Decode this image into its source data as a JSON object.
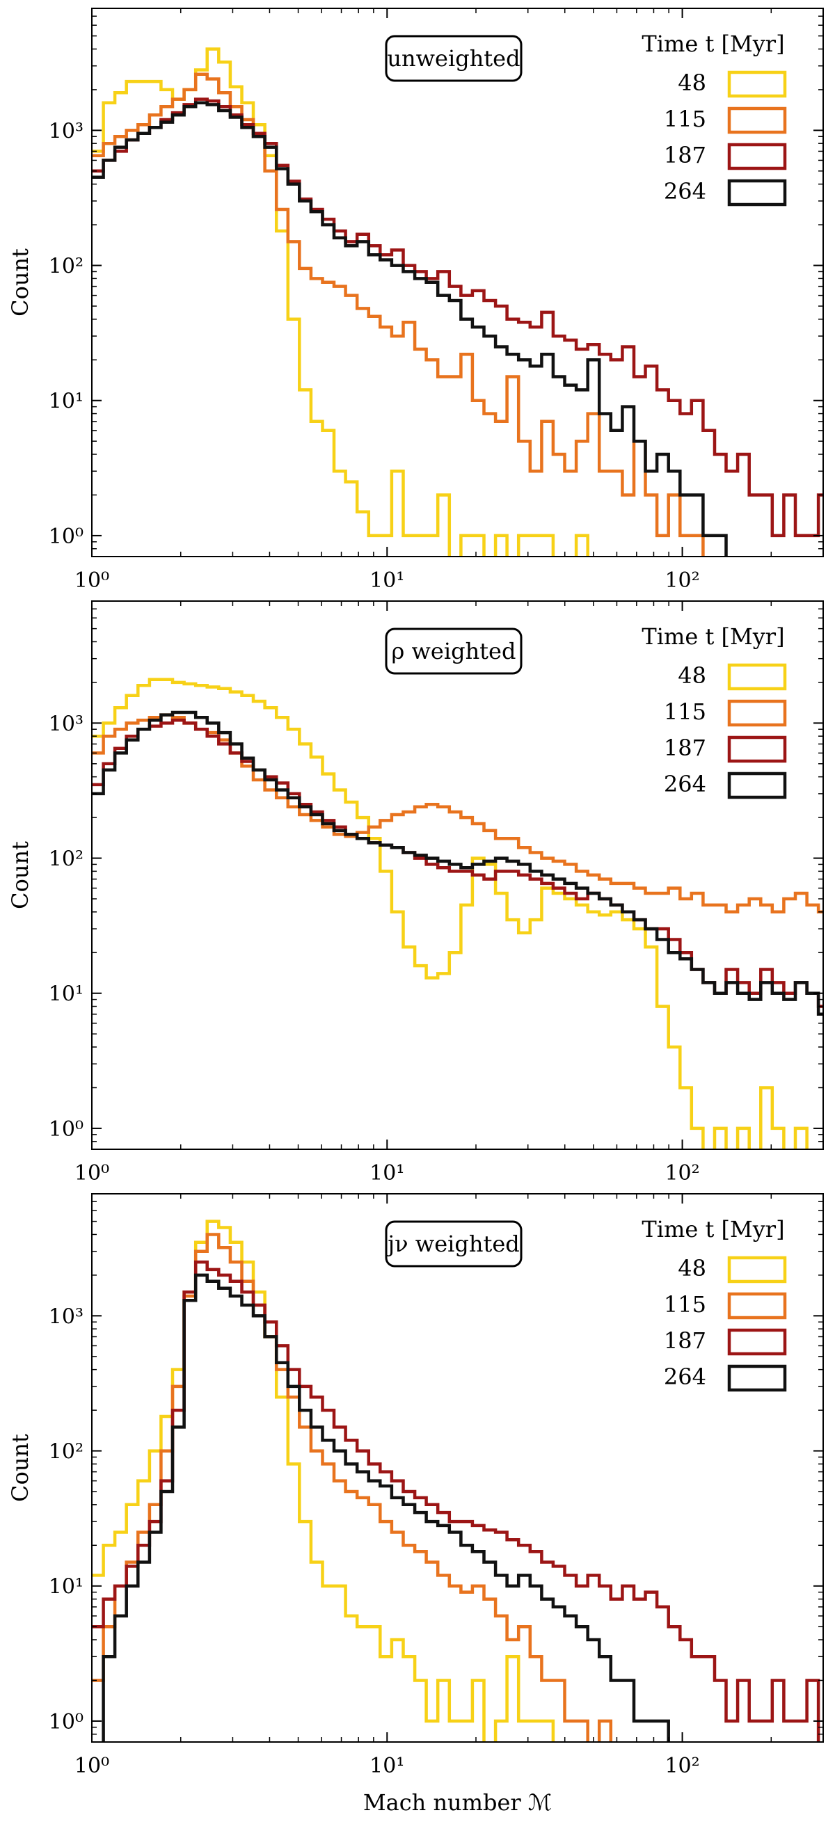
{
  "colors": {
    "48": "#f7d117",
    "115": "#e8731e",
    "187": "#9c1515",
    "264": "#111111",
    "axis": "#000000",
    "background": "#ffffff"
  },
  "chart_data": [
    {
      "type": "histogram",
      "panel_label": "unweighted",
      "ylabel": "Count",
      "xlabel": "",
      "xscale": "log",
      "yscale": "log",
      "xlim": [
        1,
        300
      ],
      "ylim": [
        0.7,
        8000
      ],
      "x_ticks": [
        {
          "value": 1,
          "label": "10⁰"
        },
        {
          "value": 10,
          "label": "10¹"
        },
        {
          "value": 100,
          "label": "10²"
        }
      ],
      "y_ticks": [
        {
          "value": 1,
          "label": "10⁰"
        },
        {
          "value": 10,
          "label": "10¹"
        },
        {
          "value": 100,
          "label": "10²"
        },
        {
          "value": 1000,
          "label": "10³"
        }
      ],
      "legend": {
        "title": "Time t [Myr]",
        "position": "top-right",
        "entries": [
          "48",
          "115",
          "187",
          "264"
        ]
      },
      "bin_edges_log10": [
        0.0,
        2.5
      ],
      "n_bins": 64,
      "series": [
        {
          "name": "48",
          "values": [
            700,
            1600,
            1900,
            2300,
            2300,
            2300,
            2000,
            1700,
            2000,
            2800,
            4000,
            3200,
            2100,
            1600,
            1100,
            650,
            180,
            40,
            12,
            7,
            6,
            3,
            2.5,
            1.5,
            1,
            1,
            3,
            1,
            1,
            1,
            2,
            0.5,
            1,
            1,
            0.5,
            1,
            0.5,
            1,
            1,
            1,
            0.5,
            0.5,
            1,
            0.5,
            0.5,
            0.5,
            0.5,
            0.5,
            0.5,
            0.5,
            0.5,
            0.5,
            0.5,
            0.5,
            0.5,
            0.5,
            0.5,
            0.5,
            0.5,
            0.5,
            0.5,
            0.5,
            0.5,
            0.5
          ]
        },
        {
          "name": "115",
          "values": [
            650,
            800,
            900,
            1000,
            1100,
            1300,
            1500,
            1700,
            2000,
            2600,
            2400,
            1900,
            1500,
            1200,
            900,
            500,
            260,
            150,
            95,
            80,
            75,
            70,
            60,
            48,
            42,
            35,
            30,
            38,
            24,
            20,
            15,
            15,
            22,
            10,
            8,
            7,
            15,
            5,
            3,
            7,
            4,
            3,
            5,
            8,
            3,
            3,
            2,
            5,
            2,
            1,
            2,
            1,
            1,
            0.5,
            0.5,
            0.5,
            0.5,
            0.5,
            0.5,
            0.5,
            0.5,
            0.5,
            0.5,
            0.5
          ]
        },
        {
          "name": "187",
          "values": [
            500,
            600,
            700,
            850,
            950,
            1050,
            1200,
            1350,
            1550,
            1700,
            1650,
            1500,
            1300,
            1100,
            950,
            800,
            550,
            420,
            310,
            260,
            220,
            180,
            150,
            170,
            140,
            120,
            130,
            100,
            90,
            80,
            90,
            70,
            60,
            65,
            55,
            50,
            40,
            38,
            35,
            45,
            30,
            28,
            24,
            26,
            22,
            20,
            25,
            15,
            18,
            12,
            10,
            8,
            10,
            6,
            4,
            3,
            4,
            2,
            2,
            1,
            2,
            1,
            1,
            2
          ]
        },
        {
          "name": "264",
          "values": [
            450,
            600,
            750,
            850,
            950,
            1050,
            1150,
            1300,
            1500,
            1600,
            1550,
            1400,
            1250,
            1050,
            900,
            750,
            520,
            400,
            300,
            250,
            200,
            160,
            140,
            150,
            120,
            110,
            100,
            90,
            80,
            75,
            60,
            55,
            40,
            35,
            30,
            25,
            22,
            20,
            18,
            22,
            15,
            13,
            12,
            20,
            8,
            6,
            9,
            5,
            3,
            4,
            3,
            2,
            2,
            1,
            1,
            0.5,
            0.5,
            0.5,
            0.5,
            0.5,
            0.5,
            0.5,
            0.5,
            0.5
          ]
        }
      ]
    },
    {
      "type": "histogram",
      "panel_label": "ρ weighted",
      "ylabel": "Count",
      "xlabel": "",
      "xscale": "log",
      "yscale": "log",
      "xlim": [
        1,
        300
      ],
      "ylim": [
        0.7,
        8000
      ],
      "x_ticks": [
        {
          "value": 1,
          "label": "10⁰"
        },
        {
          "value": 10,
          "label": "10¹"
        },
        {
          "value": 100,
          "label": "10²"
        }
      ],
      "y_ticks": [
        {
          "value": 1,
          "label": "10⁰"
        },
        {
          "value": 10,
          "label": "10¹"
        },
        {
          "value": 100,
          "label": "10²"
        },
        {
          "value": 1000,
          "label": "10³"
        }
      ],
      "legend": {
        "title": "Time t [Myr]",
        "position": "top-right",
        "entries": [
          "48",
          "115",
          "187",
          "264"
        ]
      },
      "bin_edges_log10": [
        0.0,
        2.5
      ],
      "n_bins": 64,
      "series": [
        {
          "name": "48",
          "values": [
            800,
            1000,
            1300,
            1600,
            1900,
            2100,
            2100,
            2000,
            1950,
            1900,
            1850,
            1800,
            1700,
            1600,
            1450,
            1300,
            1100,
            900,
            700,
            560,
            420,
            320,
            260,
            200,
            140,
            80,
            40,
            22,
            16,
            13,
            14,
            20,
            45,
            100,
            90,
            55,
            35,
            28,
            35,
            60,
            55,
            50,
            45,
            40,
            38,
            40,
            35,
            30,
            22,
            8,
            4,
            2,
            1,
            0.5,
            1,
            0.5,
            1,
            0.5,
            2,
            1,
            0.5,
            1,
            0.5,
            0.5
          ]
        },
        {
          "name": "115",
          "values": [
            600,
            800,
            900,
            1000,
            1050,
            1100,
            1150,
            1100,
            1000,
            900,
            850,
            750,
            600,
            480,
            380,
            320,
            280,
            240,
            210,
            190,
            170,
            150,
            145,
            155,
            170,
            190,
            210,
            220,
            240,
            250,
            240,
            220,
            200,
            180,
            160,
            140,
            140,
            120,
            110,
            100,
            95,
            90,
            80,
            75,
            70,
            65,
            65,
            60,
            55,
            55,
            60,
            50,
            55,
            45,
            45,
            40,
            45,
            50,
            45,
            40,
            50,
            55,
            45,
            40
          ]
        },
        {
          "name": "187",
          "values": [
            350,
            500,
            650,
            800,
            900,
            950,
            1000,
            1050,
            1000,
            900,
            800,
            700,
            600,
            520,
            450,
            400,
            360,
            300,
            250,
            220,
            190,
            170,
            150,
            140,
            130,
            125,
            120,
            110,
            100,
            90,
            85,
            80,
            80,
            75,
            70,
            80,
            80,
            75,
            70,
            65,
            60,
            55,
            50,
            55,
            50,
            45,
            40,
            35,
            30,
            30,
            25,
            20,
            15,
            12,
            10,
            15,
            12,
            10,
            15,
            12,
            10,
            12,
            10,
            8
          ]
        },
        {
          "name": "264",
          "values": [
            300,
            450,
            600,
            750,
            900,
            1050,
            1150,
            1200,
            1200,
            1100,
            1000,
            850,
            700,
            550,
            450,
            380,
            320,
            280,
            240,
            210,
            180,
            160,
            150,
            140,
            130,
            125,
            120,
            110,
            105,
            100,
            95,
            90,
            85,
            90,
            95,
            100,
            95,
            90,
            80,
            75,
            70,
            65,
            60,
            55,
            50,
            45,
            40,
            35,
            30,
            25,
            20,
            18,
            15,
            12,
            10,
            12,
            10,
            9,
            12,
            10,
            9,
            12,
            10,
            7
          ]
        }
      ]
    },
    {
      "type": "histogram",
      "panel_label": "jν weighted",
      "ylabel": "Count",
      "xlabel": "Mach number ℳ",
      "xscale": "log",
      "yscale": "log",
      "xlim": [
        1,
        300
      ],
      "ylim": [
        0.7,
        8000
      ],
      "x_ticks": [
        {
          "value": 1,
          "label": "10⁰"
        },
        {
          "value": 10,
          "label": "10¹"
        },
        {
          "value": 100,
          "label": "10²"
        }
      ],
      "y_ticks": [
        {
          "value": 1,
          "label": "10⁰"
        },
        {
          "value": 10,
          "label": "10¹"
        },
        {
          "value": 100,
          "label": "10²"
        },
        {
          "value": 1000,
          "label": "10³"
        }
      ],
      "legend": {
        "title": "Time t [Myr]",
        "position": "top-right",
        "entries": [
          "48",
          "115",
          "187",
          "264"
        ]
      },
      "bin_edges_log10": [
        0.0,
        2.5
      ],
      "n_bins": 64,
      "series": [
        {
          "name": "48",
          "values": [
            12,
            20,
            25,
            40,
            60,
            100,
            180,
            400,
            1500,
            3500,
            5000,
            4500,
            3500,
            2500,
            1500,
            700,
            250,
            80,
            30,
            15,
            10,
            10,
            6,
            5,
            5,
            3,
            4,
            3,
            2,
            1,
            2,
            1,
            1,
            2,
            0.5,
            1,
            3,
            1,
            1,
            1,
            0.5,
            0.5,
            0.5,
            0.5,
            0.5,
            0.5,
            0.5,
            0.5,
            0.5,
            0.5,
            0.5,
            0.5,
            0.5,
            0.5,
            0.5,
            0.5,
            0.5,
            0.5,
            0.5,
            0.5,
            0.5,
            0.5,
            0.5,
            0.5
          ]
        },
        {
          "name": "115",
          "values": [
            2,
            5,
            10,
            15,
            25,
            40,
            100,
            300,
            1400,
            3000,
            4000,
            3200,
            2500,
            1800,
            1200,
            700,
            400,
            250,
            150,
            100,
            80,
            60,
            50,
            45,
            40,
            30,
            25,
            20,
            18,
            15,
            12,
            10,
            9,
            10,
            8,
            6,
            4,
            5,
            3,
            2,
            2,
            1,
            1,
            0.5,
            1,
            0.5,
            0.5,
            0.5,
            0.5,
            0.5,
            0.5,
            0.5,
            0.5,
            0.5,
            0.5,
            0.5,
            0.5,
            0.5,
            0.5,
            0.5,
            0.5,
            0.5,
            0.5,
            0.5
          ]
        },
        {
          "name": "187",
          "values": [
            5,
            8,
            10,
            14,
            20,
            30,
            60,
            200,
            1500,
            2500,
            2200,
            2000,
            1800,
            1500,
            1200,
            900,
            600,
            400,
            300,
            250,
            200,
            150,
            120,
            100,
            80,
            70,
            60,
            50,
            45,
            40,
            35,
            30,
            30,
            28,
            26,
            25,
            22,
            20,
            18,
            15,
            14,
            12,
            10,
            12,
            10,
            8,
            10,
            8,
            9,
            7,
            5,
            4,
            3,
            3,
            2,
            1,
            2,
            1,
            1,
            2,
            1,
            1,
            2,
            0.5
          ]
        },
        {
          "name": "264",
          "values": [
            0.5,
            3,
            6,
            10,
            15,
            25,
            50,
            150,
            1300,
            2000,
            1800,
            1600,
            1400,
            1200,
            1000,
            700,
            450,
            300,
            200,
            150,
            120,
            100,
            80,
            70,
            60,
            55,
            45,
            40,
            35,
            30,
            28,
            25,
            20,
            18,
            15,
            12,
            10,
            12,
            10,
            8,
            7,
            6,
            5,
            4,
            3,
            2,
            2,
            1,
            1,
            1,
            0.5,
            0.5,
            0.5,
            0.5,
            0.5,
            0.5,
            0.5,
            0.5,
            0.5,
            0.5,
            0.5,
            0.5,
            0.5,
            0.5
          ]
        }
      ]
    }
  ]
}
